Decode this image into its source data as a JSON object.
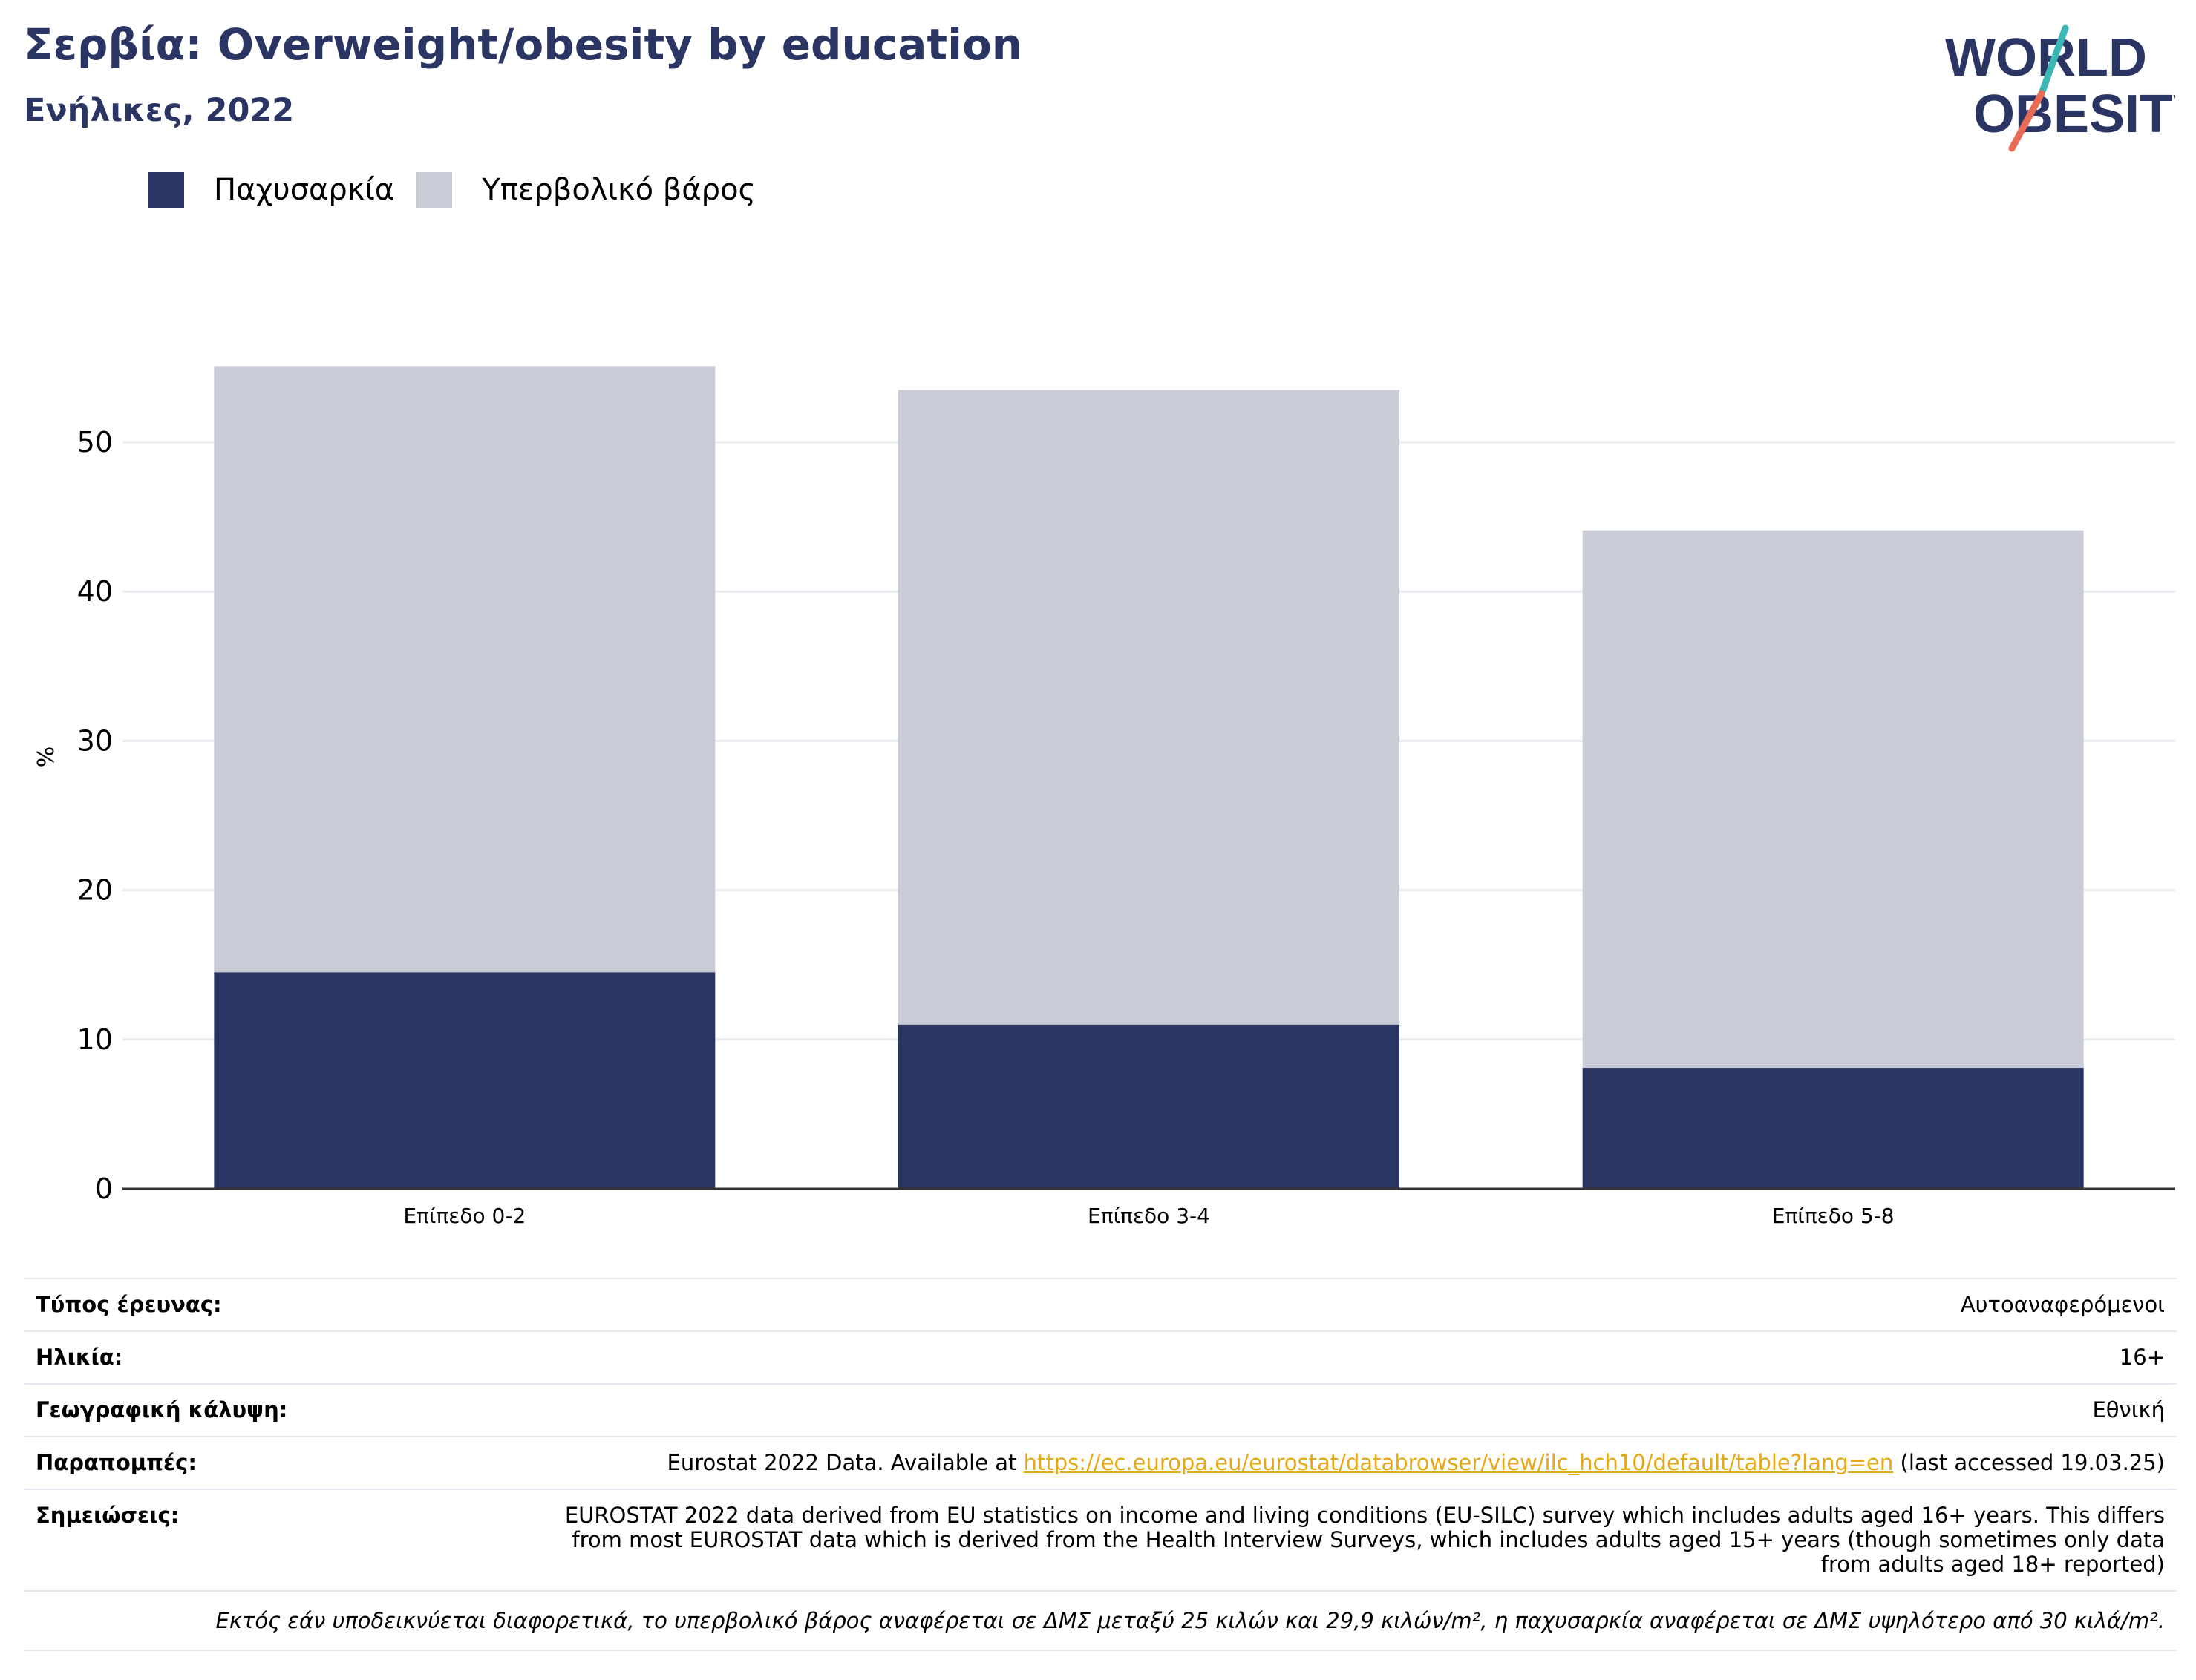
{
  "header": {
    "title": "Σερβία: Overweight/obesity by education",
    "subtitle": "Ενήλικες, 2022"
  },
  "logo": {
    "line1": "WORLD",
    "line2": "OBESITY",
    "icon": "world-obesity-slash-logo"
  },
  "colors": {
    "obesity": "#2a3563",
    "overweight": "#c9cbd7",
    "grid": "#e9ecf1",
    "axis": "#333333",
    "accent": "#e6a817"
  },
  "chart_data": {
    "type": "bar",
    "stacked": true,
    "categories": [
      "Επίπεδο 0-2",
      "Επίπεδο 3-4",
      "Επίπεδο 5-8"
    ],
    "series": [
      {
        "name": "Παχυσαρκία",
        "values": [
          14.5,
          11.0,
          8.1
        ]
      },
      {
        "name": "Υπερβολικό βάρος",
        "values": [
          40.6,
          42.5,
          36.0
        ]
      }
    ],
    "ylabel": "%",
    "xlabel": "",
    "ylim": [
      0,
      56
    ],
    "yticks": [
      0,
      10,
      20,
      30,
      40,
      50
    ],
    "grid": true,
    "legend_position": "top-left"
  },
  "info": {
    "rows": [
      {
        "key": "Τύπος έρευνας:",
        "value": "Αυτοαναφερόμενοι"
      },
      {
        "key": "Ηλικία:",
        "value": "16+"
      },
      {
        "key": "Γεωγραφική κάλυψη:",
        "value": "Εθνική"
      }
    ],
    "references": {
      "key": "Παραπομπές:",
      "prefix": "Eurostat 2022 Data. Available at ",
      "link": "https://ec.europa.eu/eurostat/databrowser/view/ilc_hch10/default/table?lang=en",
      "suffix": " (last accessed 19.03.25)"
    },
    "notes": {
      "key": "Σημειώσεις:",
      "value": "EUROSTAT 2022 data derived from EU statistics on income and living conditions (EU-SILC) survey which includes adults aged 16+ years. This differs from most EUROSTAT data which is derived from the Health Interview Surveys, which includes adults aged 15+ years (though sometimes only data from adults aged 18+ reported)"
    },
    "footnote": "Εκτός εάν υποδεικνύεται διαφορετικά, το υπερβολικό βάρος αναφέρεται σε ΔΜΣ μεταξύ 25 κιλών και 29,9 κιλών/m², η παχυσαρκία αναφέρεται σε ΔΜΣ υψηλότερο από 30 κιλά/m²."
  }
}
